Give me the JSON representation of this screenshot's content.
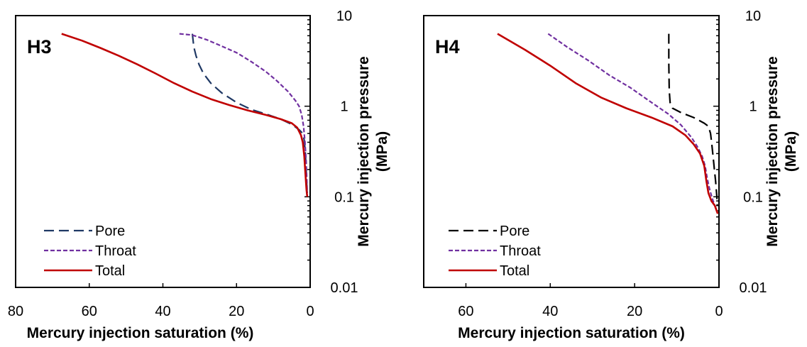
{
  "chart_data": [
    {
      "type": "line",
      "panel_label": "H3",
      "xlabel": "Mercury injection saturation (%)",
      "ylabel_line1": "Mercury injection pressure",
      "ylabel_line2": "(MPa)",
      "x_reversed": true,
      "xlim": [
        80,
        0
      ],
      "x_ticks": [
        80,
        60,
        40,
        20,
        0
      ],
      "y_scale": "log",
      "ylim": [
        0.01,
        10
      ],
      "y_ticks": [
        "10",
        "1",
        "0.1",
        "0.01"
      ],
      "legend_position": "bottom-left",
      "series": [
        {
          "name": "Pore",
          "color": "#1f3864",
          "dash": "long-dash",
          "points": [
            [
              32,
              6.3
            ],
            [
              31.6,
              4.5
            ],
            [
              31,
              3.6
            ],
            [
              30.2,
              2.9
            ],
            [
              29,
              2.3
            ],
            [
              27,
              1.8
            ],
            [
              24,
              1.4
            ],
            [
              20,
              1.1
            ],
            [
              16,
              0.92
            ],
            [
              12,
              0.82
            ],
            [
              8,
              0.72
            ],
            [
              5,
              0.63
            ],
            [
              3,
              0.55
            ],
            [
              2,
              0.5
            ],
            [
              1.6,
              0.42
            ],
            [
              1.3,
              0.3
            ],
            [
              1.1,
              0.2
            ],
            [
              0.9,
              0.13
            ],
            [
              0.8,
              0.1
            ]
          ]
        },
        {
          "name": "Throat",
          "color": "#7030a0",
          "dash": "short-dash",
          "points": [
            [
              35.5,
              6.3
            ],
            [
              32,
              6.1
            ],
            [
              28,
              5.4
            ],
            [
              24,
              4.6
            ],
            [
              20,
              3.9
            ],
            [
              16,
              3.1
            ],
            [
              12,
              2.4
            ],
            [
              9,
              1.9
            ],
            [
              6,
              1.45
            ],
            [
              4,
              1.15
            ],
            [
              3,
              1.0
            ],
            [
              2.3,
              0.8
            ],
            [
              1.8,
              0.6
            ],
            [
              1.4,
              0.4
            ],
            [
              1.1,
              0.25
            ],
            [
              0.9,
              0.15
            ],
            [
              0.8,
              0.11
            ]
          ]
        },
        {
          "name": "Total",
          "color": "#c00000",
          "dash": "solid",
          "points": [
            [
              67.5,
              6.3
            ],
            [
              62,
              5.3
            ],
            [
              57,
              4.4
            ],
            [
              52,
              3.6
            ],
            [
              47,
              2.9
            ],
            [
              42,
              2.3
            ],
            [
              37,
              1.8
            ],
            [
              32,
              1.45
            ],
            [
              27,
              1.2
            ],
            [
              22,
              1.03
            ],
            [
              17,
              0.9
            ],
            [
              12,
              0.8
            ],
            [
              8,
              0.72
            ],
            [
              5,
              0.65
            ],
            [
              3.5,
              0.58
            ],
            [
              2.5,
              0.48
            ],
            [
              2,
              0.4
            ],
            [
              1.6,
              0.28
            ],
            [
              1.3,
              0.18
            ],
            [
              1.0,
              0.12
            ],
            [
              0.8,
              0.1
            ]
          ]
        }
      ]
    },
    {
      "type": "line",
      "panel_label": "H4",
      "xlabel": "Mercury injection saturation (%)",
      "ylabel_line1": "Mercury injection pressure",
      "ylabel_line2": "(MPa)",
      "x_reversed": true,
      "xlim": [
        70,
        0
      ],
      "x_ticks": [
        60,
        40,
        20,
        0
      ],
      "y_scale": "log",
      "ylim": [
        0.01,
        10
      ],
      "y_ticks": [
        "10",
        "1",
        "0.1",
        "0.01"
      ],
      "legend_position": "bottom-left",
      "series": [
        {
          "name": "Pore",
          "color": "#000000",
          "dash": "long-dash",
          "points": [
            [
              11.9,
              6.3
            ],
            [
              11.9,
              3.0
            ],
            [
              11.8,
              1.5
            ],
            [
              11.6,
              1.1
            ],
            [
              11,
              0.95
            ],
            [
              9,
              0.85
            ],
            [
              6,
              0.75
            ],
            [
              3.5,
              0.65
            ],
            [
              2.5,
              0.6
            ],
            [
              2,
              0.5
            ],
            [
              1.7,
              0.38
            ],
            [
              1.3,
              0.25
            ],
            [
              1.1,
              0.2
            ],
            [
              0.8,
              0.15
            ],
            [
              0.5,
              0.1
            ],
            [
              0.4,
              0.08
            ]
          ]
        },
        {
          "name": "Throat",
          "color": "#7030a0",
          "dash": "short-dash",
          "points": [
            [
              40.5,
              6.3
            ],
            [
              36,
              4.5
            ],
            [
              31,
              3.2
            ],
            [
              26,
              2.2
            ],
            [
              21,
              1.6
            ],
            [
              16,
              1.1
            ],
            [
              12,
              0.82
            ],
            [
              9,
              0.62
            ],
            [
              6.5,
              0.45
            ],
            [
              5,
              0.35
            ],
            [
              4,
              0.28
            ],
            [
              3.3,
              0.22
            ],
            [
              2.8,
              0.16
            ],
            [
              2.2,
              0.12
            ],
            [
              1.4,
              0.09
            ],
            [
              0.5,
              0.07
            ]
          ]
        },
        {
          "name": "Total",
          "color": "#c00000",
          "dash": "solid",
          "points": [
            [
              52.5,
              6.3
            ],
            [
              46,
              4.2
            ],
            [
              40,
              2.8
            ],
            [
              34,
              1.8
            ],
            [
              28,
              1.25
            ],
            [
              22,
              0.95
            ],
            [
              16,
              0.75
            ],
            [
              11,
              0.6
            ],
            [
              8,
              0.48
            ],
            [
              6,
              0.38
            ],
            [
              4.5,
              0.3
            ],
            [
              3.5,
              0.22
            ],
            [
              3,
              0.15
            ],
            [
              2.5,
              0.11
            ],
            [
              1.8,
              0.09
            ],
            [
              1,
              0.08
            ],
            [
              0.3,
              0.065
            ]
          ]
        }
      ]
    }
  ]
}
